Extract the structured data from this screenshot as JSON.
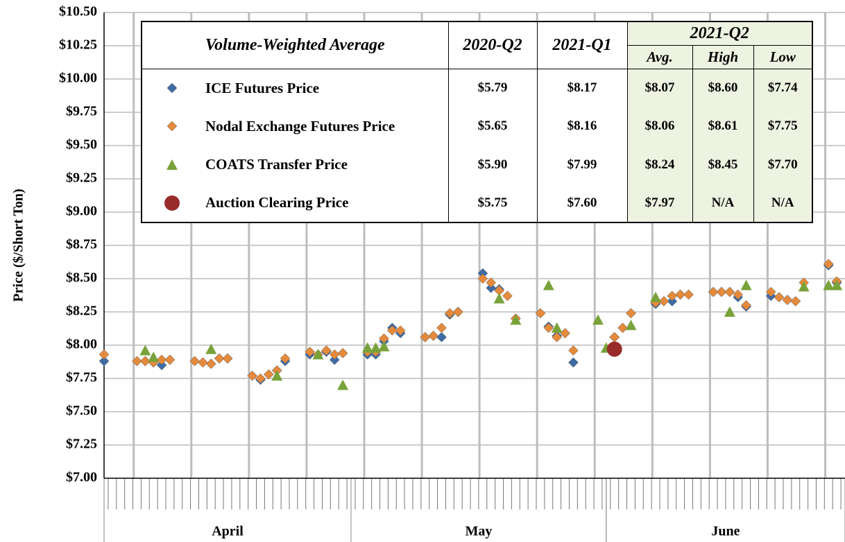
{
  "chart_data": {
    "type": "scatter",
    "y_label": "Price ($/Short Ton)",
    "xlim": [
      0,
      90
    ],
    "xticks": [
      3.6,
      10.6,
      17.6,
      24.6,
      31.6,
      38.6,
      45.6,
      52.6,
      59.6,
      66.6,
      73.6,
      80.6,
      87.6
    ],
    "x_groups": [
      {
        "label": "April",
        "start": 0,
        "end": 30
      },
      {
        "label": "May",
        "start": 30,
        "end": 61
      },
      {
        "label": "June",
        "start": 61,
        "end": 91
      }
    ],
    "ylim": [
      7,
      10.5
    ],
    "yticks": [
      {
        "value": 7,
        "label": "$7.00"
      },
      {
        "value": 7.25,
        "label": "$7.25"
      },
      {
        "value": 7.5,
        "label": "$7.50"
      },
      {
        "value": 7.75,
        "label": "$7.75"
      },
      {
        "value": 8,
        "label": "$8.00"
      },
      {
        "value": 8.25,
        "label": "$8.25"
      },
      {
        "value": 8.5,
        "label": "$8.50"
      },
      {
        "value": 8.75,
        "label": "$8.75"
      },
      {
        "value": 9,
        "label": "$9.00"
      },
      {
        "value": 9.25,
        "label": "$9.25"
      },
      {
        "value": 9.5,
        "label": "$9.50"
      },
      {
        "value": 9.75,
        "label": "$9.75"
      },
      {
        "value": 10,
        "label": "$10.00"
      },
      {
        "value": 10.25,
        "label": "$10.25"
      },
      {
        "value": 10.5,
        "label": "$10.50"
      }
    ],
    "grid": true,
    "series": [
      {
        "name": "ICE Futures Price",
        "color": "#3f6ca6",
        "marker": "diamond",
        "x": [
          0,
          4,
          5,
          6,
          7,
          8,
          11,
          12,
          13,
          14,
          15,
          18,
          19,
          20,
          21,
          22,
          25,
          26,
          27,
          28,
          29,
          32,
          33,
          34,
          35,
          36,
          39,
          40,
          41,
          42,
          43,
          46,
          47,
          48,
          49,
          50,
          53,
          54,
          55,
          56,
          57,
          62,
          63,
          64,
          67,
          68,
          69,
          70,
          71,
          74,
          75,
          76,
          77,
          78,
          81,
          82,
          83,
          84,
          88,
          89
        ],
        "values": [
          7.88,
          7.88,
          7.88,
          7.87,
          7.85,
          7.89,
          7.88,
          7.87,
          7.86,
          7.9,
          7.9,
          7.77,
          7.74,
          7.78,
          7.81,
          7.88,
          7.93,
          7.93,
          7.95,
          7.89,
          7.94,
          7.93,
          7.93,
          8.03,
          8.13,
          8.09,
          8.06,
          8.07,
          8.06,
          8.23,
          8.25,
          8.54,
          8.43,
          8.42,
          8.37,
          8.2,
          8.24,
          8.14,
          8.07,
          8.09,
          7.87,
          8.06,
          8.13,
          8.24,
          8.31,
          8.33,
          8.33,
          8.38,
          8.38,
          8.4,
          8.4,
          8.4,
          8.36,
          8.29,
          8.37,
          8.36,
          8.34,
          8.33,
          8.6,
          8.47
        ]
      },
      {
        "name": "Nodal Exchange Futures Price",
        "color": "#e58a3c",
        "marker": "diamond",
        "x": [
          0,
          4,
          5,
          6,
          7,
          8,
          11,
          12,
          13,
          14,
          15,
          18,
          19,
          20,
          21,
          22,
          25,
          26,
          27,
          28,
          29,
          32,
          33,
          34,
          35,
          36,
          39,
          40,
          41,
          42,
          43,
          46,
          47,
          48,
          49,
          50,
          53,
          54,
          55,
          56,
          57,
          62,
          63,
          64,
          67,
          68,
          69,
          70,
          71,
          74,
          75,
          76,
          77,
          78,
          81,
          82,
          83,
          84,
          85,
          88,
          89
        ],
        "values": [
          7.93,
          7.88,
          7.88,
          7.87,
          7.89,
          7.89,
          7.88,
          7.87,
          7.86,
          7.9,
          7.9,
          7.77,
          7.75,
          7.78,
          7.81,
          7.9,
          7.95,
          7.93,
          7.96,
          7.93,
          7.94,
          7.95,
          7.95,
          8.05,
          8.11,
          8.11,
          8.06,
          8.07,
          8.13,
          8.24,
          8.25,
          8.5,
          8.47,
          8.41,
          8.37,
          8.2,
          8.24,
          8.13,
          8.06,
          8.09,
          7.96,
          8.06,
          8.13,
          8.24,
          8.32,
          8.33,
          8.37,
          8.38,
          8.38,
          8.4,
          8.4,
          8.4,
          8.38,
          8.3,
          8.4,
          8.36,
          8.34,
          8.33,
          8.47,
          8.61,
          8.48
        ]
      },
      {
        "name": "COATS Transfer Price",
        "color": "#78a23a",
        "marker": "triangle",
        "x": [
          5,
          6,
          13,
          21,
          26,
          29,
          32,
          33,
          34,
          48,
          50,
          54,
          55,
          60,
          61,
          64,
          67,
          76,
          78,
          85,
          88,
          89
        ],
        "values": [
          7.96,
          7.91,
          7.97,
          7.77,
          7.93,
          7.7,
          7.98,
          7.98,
          7.99,
          8.35,
          8.19,
          8.45,
          8.13,
          8.19,
          7.98,
          8.15,
          8.36,
          8.25,
          8.45,
          8.44,
          8.45,
          8.45
        ]
      },
      {
        "name": "Auction Clearing Price",
        "color": "#9a2b2b",
        "marker": "circle",
        "x": [
          62
        ],
        "values": [
          7.97
        ]
      }
    ]
  },
  "table": {
    "header": "Volume-Weighted Average",
    "columns": [
      "2020-Q2",
      "2021-Q1",
      "2021-Q2"
    ],
    "subcolumns": [
      "Avg.",
      "High",
      "Low"
    ],
    "rows": [
      [
        "$5.79",
        "$8.17",
        "$8.07",
        "$8.60",
        "$7.74"
      ],
      [
        "$5.65",
        "$8.16",
        "$8.06",
        "$8.61",
        "$7.75"
      ],
      [
        "$5.90",
        "$7.99",
        "$8.24",
        "$8.45",
        "$7.70"
      ],
      [
        "$5.75",
        "$7.60",
        "$7.97",
        "N/A",
        "N/A"
      ]
    ]
  }
}
